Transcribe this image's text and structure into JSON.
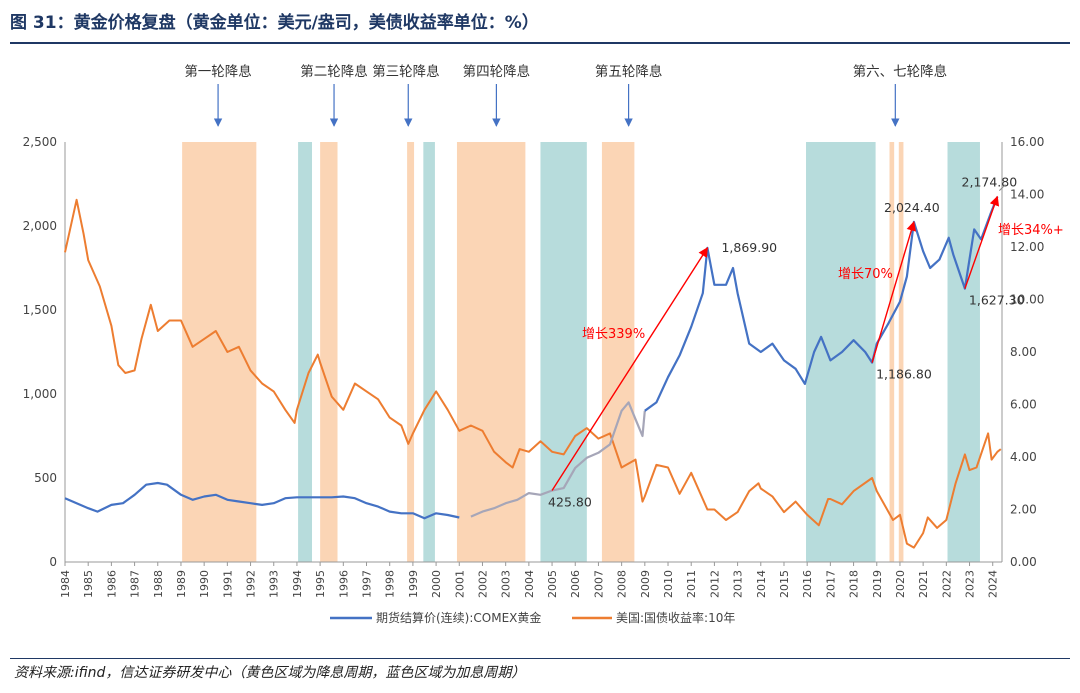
{
  "figure": {
    "title": "图 31：黄金价格复盘（黄金单位：美元/盎司，美债收益率单位：%）",
    "source": "资料来源:ifind，信达证券研发中心（黄色区域为降息周期，蓝色区域为加息周期）"
  },
  "colors": {
    "gold": "#4472c4",
    "gold_gap": "#a6a6b8",
    "yield": "#ed7d31",
    "cut_band": "#fbd5b5",
    "hike_band": "#b7dcdc",
    "annotation": "#ff0000",
    "arrow_marker": "#4472c4",
    "title": "#1f3864"
  },
  "chart_data": {
    "type": "line",
    "x_axis": {
      "labels": [
        "1984",
        "1985",
        "1986",
        "1987",
        "1988",
        "1989",
        "1990",
        "1991",
        "1992",
        "1993",
        "1994",
        "1995",
        "1996",
        "1997",
        "1998",
        "1999",
        "2000",
        "2001",
        "2002",
        "2003",
        "2004",
        "2005",
        "2006",
        "2007",
        "2008",
        "2009",
        "2010",
        "2011",
        "2012",
        "2013",
        "2014",
        "2015",
        "2016",
        "2017",
        "2018",
        "2019",
        "2020",
        "2021",
        "2022",
        "2023",
        "2024"
      ],
      "range": [
        1984,
        2024.4
      ]
    },
    "y_left": {
      "range": [
        0,
        2500
      ],
      "tick_labels": [
        "0",
        "500",
        "1,000",
        "1,500",
        "2,000",
        "2,500"
      ],
      "tick_values": [
        0,
        500,
        1000,
        1500,
        2000,
        2500
      ]
    },
    "y_right": {
      "range": [
        0,
        16
      ],
      "tick_labels": [
        "0.00",
        "2.00",
        "4.00",
        "6.00",
        "8.00",
        "10.00",
        "12.00",
        "14.00",
        "16.00"
      ],
      "tick_values": [
        0,
        2,
        4,
        6,
        8,
        10,
        12,
        14,
        16
      ]
    },
    "grid": false,
    "legend_position": "bottom",
    "series": [
      {
        "name": "期货结算价(连续):COMEX黄金",
        "axis": "left",
        "points": [
          [
            1984,
            380
          ],
          [
            1984.5,
            350
          ],
          [
            1985,
            320
          ],
          [
            1985.4,
            300
          ],
          [
            1986,
            340
          ],
          [
            1986.5,
            350
          ],
          [
            1987,
            400
          ],
          [
            1987.5,
            460
          ],
          [
            1988,
            470
          ],
          [
            1988.4,
            460
          ],
          [
            1989,
            400
          ],
          [
            1989.5,
            370
          ],
          [
            1990,
            390
          ],
          [
            1990.5,
            400
          ],
          [
            1991,
            370
          ],
          [
            1991.5,
            360
          ],
          [
            1992,
            350
          ],
          [
            1992.5,
            340
          ],
          [
            1993,
            350
          ],
          [
            1993.5,
            380
          ],
          [
            1994,
            385
          ],
          [
            1994.5,
            385
          ],
          [
            1995,
            385
          ],
          [
            1995.5,
            385
          ],
          [
            1996,
            390
          ],
          [
            1996.5,
            380
          ],
          [
            1997,
            350
          ],
          [
            1997.5,
            330
          ],
          [
            1998,
            300
          ],
          [
            1998.5,
            290
          ],
          [
            1999,
            290
          ],
          [
            1999.5,
            260
          ],
          [
            2000,
            290
          ],
          [
            2000.5,
            280
          ],
          [
            2001,
            265
          ],
          [
            2001.5,
            270
          ],
          [
            2002,
            300
          ],
          [
            2002.5,
            320
          ],
          [
            2003,
            350
          ],
          [
            2003.5,
            370
          ],
          [
            2004,
            410
          ],
          [
            2004.5,
            400
          ],
          [
            2005,
            425.8
          ],
          [
            2005.5,
            440
          ],
          [
            2006,
            560
          ],
          [
            2006.5,
            620
          ],
          [
            2007,
            650
          ],
          [
            2007.5,
            700
          ],
          [
            2008,
            900
          ],
          [
            2008.3,
            950
          ],
          [
            2008.6,
            850
          ],
          [
            2008.9,
            750
          ],
          [
            2009,
            900
          ],
          [
            2009.5,
            950
          ],
          [
            2010,
            1100
          ],
          [
            2010.5,
            1230
          ],
          [
            2011,
            1400
          ],
          [
            2011.5,
            1600
          ],
          [
            2011.7,
            1869.9
          ],
          [
            2012,
            1650
          ],
          [
            2012.5,
            1650
          ],
          [
            2012.8,
            1750
          ],
          [
            2013,
            1600
          ],
          [
            2013.5,
            1300
          ],
          [
            2014,
            1250
          ],
          [
            2014.5,
            1300
          ],
          [
            2015,
            1200
          ],
          [
            2015.5,
            1150
          ],
          [
            2015.9,
            1060
          ],
          [
            2016.3,
            1250
          ],
          [
            2016.6,
            1340
          ],
          [
            2017,
            1200
          ],
          [
            2017.5,
            1250
          ],
          [
            2018,
            1320
          ],
          [
            2018.5,
            1250
          ],
          [
            2018.8,
            1186.8
          ],
          [
            2019,
            1300
          ],
          [
            2019.5,
            1420
          ],
          [
            2020,
            1550
          ],
          [
            2020.3,
            1700
          ],
          [
            2020.6,
            2024.4
          ],
          [
            2021,
            1850
          ],
          [
            2021.3,
            1750
          ],
          [
            2021.7,
            1800
          ],
          [
            2022.1,
            1930
          ],
          [
            2022.3,
            1830
          ],
          [
            2022.8,
            1627.3
          ],
          [
            2023.2,
            1980
          ],
          [
            2023.5,
            1920
          ],
          [
            2023.9,
            2070
          ],
          [
            2024.2,
            2174.8
          ]
        ]
      },
      {
        "name": "美国:国债收益率:10年",
        "axis": "right",
        "points": [
          [
            1984,
            11.8
          ],
          [
            1984.5,
            13.8
          ],
          [
            1984.8,
            12.5
          ],
          [
            1985,
            11.5
          ],
          [
            1985.5,
            10.5
          ],
          [
            1986,
            9.0
          ],
          [
            1986.3,
            7.5
          ],
          [
            1986.6,
            7.2
          ],
          [
            1987,
            7.3
          ],
          [
            1987.3,
            8.5
          ],
          [
            1987.7,
            9.8
          ],
          [
            1988,
            8.8
          ],
          [
            1988.5,
            9.2
          ],
          [
            1989,
            9.2
          ],
          [
            1989.5,
            8.2
          ],
          [
            1990,
            8.5
          ],
          [
            1990.5,
            8.8
          ],
          [
            1991,
            8.0
          ],
          [
            1991.5,
            8.2
          ],
          [
            1992,
            7.3
          ],
          [
            1992.5,
            6.8
          ],
          [
            1993,
            6.5
          ],
          [
            1993.5,
            5.8
          ],
          [
            1993.9,
            5.3
          ],
          [
            1994,
            5.8
          ],
          [
            1994.5,
            7.2
          ],
          [
            1994.9,
            7.9
          ],
          [
            1995,
            7.6
          ],
          [
            1995.5,
            6.3
          ],
          [
            1996,
            5.8
          ],
          [
            1996.5,
            6.8
          ],
          [
            1997,
            6.5
          ],
          [
            1997.5,
            6.2
          ],
          [
            1998,
            5.5
          ],
          [
            1998.5,
            5.2
          ],
          [
            1998.8,
            4.5
          ],
          [
            1999,
            4.9
          ],
          [
            1999.5,
            5.8
          ],
          [
            2000,
            6.5
          ],
          [
            2000.5,
            5.8
          ],
          [
            2001,
            5.0
          ],
          [
            2001.5,
            5.2
          ],
          [
            2002,
            5.0
          ],
          [
            2002.5,
            4.2
          ],
          [
            2003,
            3.8
          ],
          [
            2003.3,
            3.6
          ],
          [
            2003.6,
            4.3
          ],
          [
            2004,
            4.2
          ],
          [
            2004.5,
            4.6
          ],
          [
            2005,
            4.2
          ],
          [
            2005.5,
            4.1
          ],
          [
            2006,
            4.8
          ],
          [
            2006.5,
            5.1
          ],
          [
            2007,
            4.7
          ],
          [
            2007.5,
            4.9
          ],
          [
            2008,
            3.6
          ],
          [
            2008.6,
            3.9
          ],
          [
            2008.9,
            2.3
          ],
          [
            2009,
            2.5
          ],
          [
            2009.5,
            3.7
          ],
          [
            2010,
            3.6
          ],
          [
            2010.5,
            2.6
          ],
          [
            2011,
            3.4
          ],
          [
            2011.7,
            2.0
          ],
          [
            2012,
            2.0
          ],
          [
            2012.5,
            1.6
          ],
          [
            2013,
            1.9
          ],
          [
            2013.5,
            2.7
          ],
          [
            2013.9,
            3.0
          ],
          [
            2014,
            2.8
          ],
          [
            2014.5,
            2.5
          ],
          [
            2015,
            1.9
          ],
          [
            2015.5,
            2.3
          ],
          [
            2016,
            1.8
          ],
          [
            2016.5,
            1.4
          ],
          [
            2016.9,
            2.4
          ],
          [
            2017,
            2.4
          ],
          [
            2017.5,
            2.2
          ],
          [
            2018,
            2.7
          ],
          [
            2018.8,
            3.2
          ],
          [
            2019,
            2.7
          ],
          [
            2019.7,
            1.6
          ],
          [
            2020,
            1.8
          ],
          [
            2020.3,
            0.7
          ],
          [
            2020.6,
            0.55
          ],
          [
            2021,
            1.1
          ],
          [
            2021.2,
            1.7
          ],
          [
            2021.6,
            1.3
          ],
          [
            2022,
            1.6
          ],
          [
            2022.4,
            3.0
          ],
          [
            2022.8,
            4.1
          ],
          [
            2023,
            3.5
          ],
          [
            2023.3,
            3.6
          ],
          [
            2023.8,
            4.9
          ],
          [
            2023.95,
            3.9
          ],
          [
            2024.2,
            4.2
          ],
          [
            2024.35,
            4.3
          ]
        ]
      }
    ],
    "gold_gap_range": [
      2001.2,
      2009.0
    ],
    "cut_periods": [
      [
        1989.05,
        1992.25
      ],
      [
        1995.0,
        1995.75
      ],
      [
        1998.75,
        1999.05
      ],
      [
        2000.9,
        2003.85
      ],
      [
        2007.15,
        2008.55
      ],
      [
        2019.55,
        2019.75
      ],
      [
        2019.95,
        2020.15
      ]
    ],
    "hike_periods": [
      [
        1994.05,
        1994.65
      ],
      [
        1999.45,
        1999.95
      ],
      [
        2004.5,
        2006.5
      ],
      [
        2015.95,
        2018.95
      ],
      [
        2022.05,
        2023.45
      ]
    ],
    "period_labels": [
      {
        "text": "第一轮降息",
        "year": 1990.6
      },
      {
        "text": "第二轮降息",
        "year": 1995.6
      },
      {
        "text": "第三轮降息",
        "year": 1998.7
      },
      {
        "text": "第四轮降息",
        "year": 2002.6
      },
      {
        "text": "第五轮降息",
        "year": 2008.3
      },
      {
        "text": "第六、七轮降息",
        "year": 2020.0
      }
    ],
    "period_arrows": [
      1990.6,
      1995.6,
      1998.8,
      2002.6,
      2008.3,
      2019.8
    ],
    "value_labels": [
      {
        "text": "1,869.90",
        "x": 2011.7,
        "y": 1869.9
      },
      {
        "text": "425.80",
        "x": 2005.0,
        "y": 425.8
      },
      {
        "text": "2,024.40",
        "x": 2020.6,
        "y": 2024.4
      },
      {
        "text": "1,186.80",
        "x": 2018.8,
        "y": 1186.8
      },
      {
        "text": "2,174.80",
        "x": 2024.2,
        "y": 2174.8
      },
      {
        "text": "1,627.30",
        "x": 2022.8,
        "y": 1627.3
      }
    ],
    "growth_annotations": [
      {
        "text": "增长339%",
        "from": [
          2005.0,
          425.8
        ],
        "to": [
          2011.7,
          1869.9
        ]
      },
      {
        "text": "增长70%",
        "from": [
          2018.8,
          1186.8
        ],
        "to": [
          2020.6,
          2024.4
        ]
      },
      {
        "text": "增长34%+",
        "from": [
          2022.8,
          1627.3
        ],
        "to": [
          2024.2,
          2174.8
        ]
      }
    ]
  }
}
